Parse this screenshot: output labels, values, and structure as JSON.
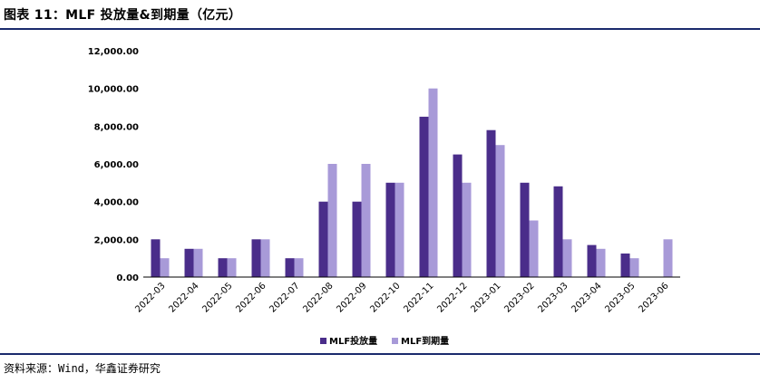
{
  "header": {
    "title": "图表 11：MLF 投放量&到期量（亿元）"
  },
  "footer": {
    "source": "资料来源：Wind，华鑫证券研究"
  },
  "colors": {
    "rule": "#1a2a6c",
    "series_dark": "#4a2d8a",
    "series_light": "#a89ad8"
  },
  "chart_data": {
    "type": "bar",
    "title": "MLF 投放量&到期量（亿元）",
    "categories": [
      "2022-03",
      "2022-04",
      "2022-05",
      "2022-06",
      "2022-07",
      "2022-08",
      "2022-09",
      "2022-10",
      "2022-11",
      "2022-12",
      "2023-01",
      "2023-02",
      "2023-03",
      "2023-04",
      "2023-05",
      "2023-06"
    ],
    "series": [
      {
        "name": "MLF投放量",
        "color": "#4a2d8a",
        "values": [
          2000,
          1500,
          1000,
          2000,
          1000,
          4000,
          4000,
          5000,
          8500,
          6500,
          7790,
          5000,
          4810,
          1700,
          1250,
          0
        ]
      },
      {
        "name": "MLF到期量",
        "color": "#a89ad8",
        "values": [
          1000,
          1500,
          1000,
          2000,
          1000,
          6000,
          6000,
          5000,
          10000,
          5000,
          7000,
          3000,
          2000,
          1500,
          1000,
          2000
        ]
      }
    ],
    "yticks": [
      "0.00",
      "2,000.00",
      "4,000.00",
      "6,000.00",
      "8,000.00",
      "10,000.00",
      "12,000.00"
    ],
    "ylim": [
      0,
      12000
    ],
    "xlabel": "",
    "ylabel": "",
    "grid": false,
    "legend_position": "bottom-center"
  }
}
